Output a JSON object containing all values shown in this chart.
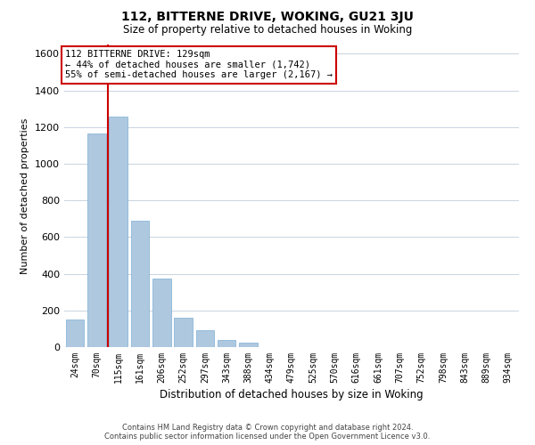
{
  "title": "112, BITTERNE DRIVE, WOKING, GU21 3JU",
  "subtitle": "Size of property relative to detached houses in Woking",
  "xlabel": "Distribution of detached houses by size in Woking",
  "ylabel": "Number of detached properties",
  "categories": [
    "24sqm",
    "70sqm",
    "115sqm",
    "161sqm",
    "206sqm",
    "252sqm",
    "297sqm",
    "343sqm",
    "388sqm",
    "434sqm",
    "479sqm",
    "525sqm",
    "570sqm",
    "616sqm",
    "661sqm",
    "707sqm",
    "752sqm",
    "798sqm",
    "843sqm",
    "889sqm",
    "934sqm"
  ],
  "values": [
    150,
    1165,
    1255,
    690,
    375,
    160,
    90,
    38,
    22,
    0,
    0,
    0,
    0,
    0,
    0,
    0,
    0,
    0,
    0,
    0,
    0
  ],
  "bar_color": "#aec8e0",
  "bar_edge_color": "#7bafd4",
  "vline_x": 1.5,
  "vline_color": "#cc0000",
  "annotation_text_line1": "112 BITTERNE DRIVE: 129sqm",
  "annotation_text_line2": "← 44% of detached houses are smaller (1,742)",
  "annotation_text_line3": "55% of semi-detached houses are larger (2,167) →",
  "annotation_box_color": "#ffffff",
  "annotation_box_edge": "#cc0000",
  "ylim": [
    0,
    1650
  ],
  "yticks": [
    0,
    200,
    400,
    600,
    800,
    1000,
    1200,
    1400,
    1600
  ],
  "footer_line1": "Contains HM Land Registry data © Crown copyright and database right 2024.",
  "footer_line2": "Contains public sector information licensed under the Open Government Licence v3.0.",
  "background_color": "#ffffff",
  "grid_color": "#c8d4e0"
}
